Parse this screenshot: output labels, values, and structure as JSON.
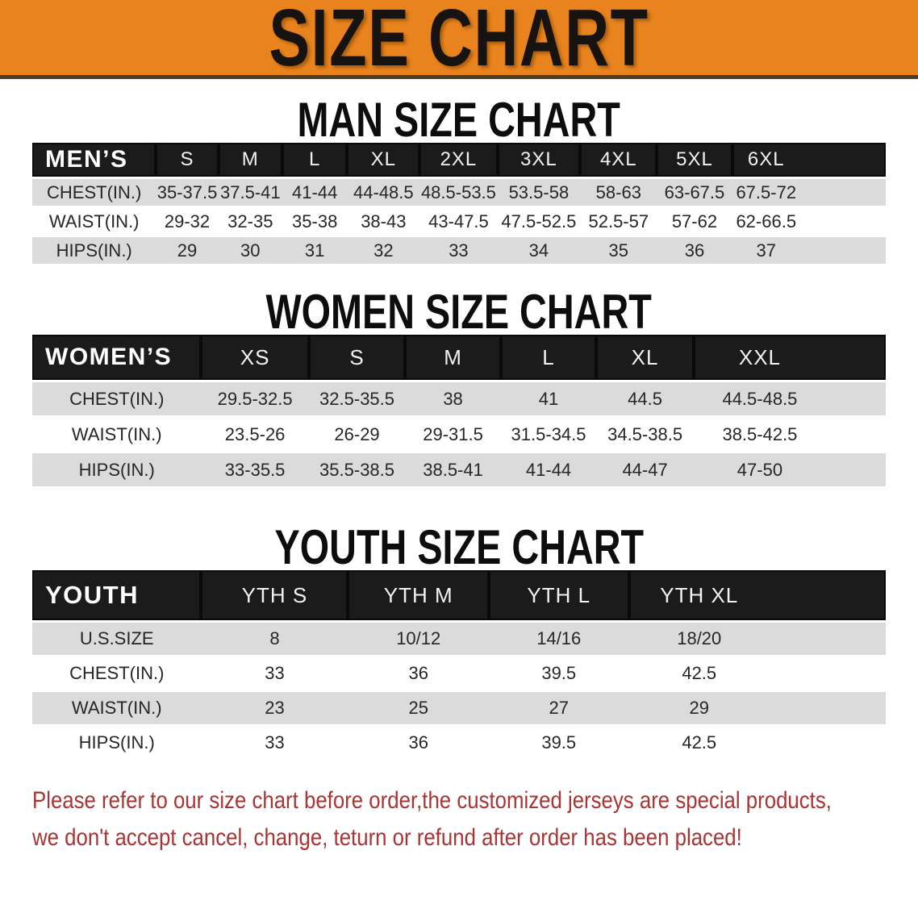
{
  "banner": {
    "title": "SIZE CHART"
  },
  "colors": {
    "banner_bg": "#E8831D",
    "header_bar_bg": "#1B1B1B",
    "row_stripe": "#DBDBDB",
    "notice_text": "#A93434"
  },
  "sections": [
    {
      "heading": "MAN SIZE CHART",
      "table": {
        "label": "MEN’S",
        "columns": [
          "S",
          "M",
          "L",
          "XL",
          "2XL",
          "3XL",
          "4XL",
          "5XL",
          "6XL"
        ],
        "rows": [
          {
            "label": "CHEST(IN.)",
            "values": [
              "35-37.5",
              "37.5-41",
              "41-44",
              "44-48.5",
              "48.5-53.5",
              "53.5-58",
              "58-63",
              "63-67.5",
              "67.5-72"
            ]
          },
          {
            "label": "WAIST(IN.)",
            "values": [
              "29-32",
              "32-35",
              "35-38",
              "38-43",
              "43-47.5",
              "47.5-52.5",
              "52.5-57",
              "57-62",
              "62-66.5"
            ]
          },
          {
            "label": "HIPS(IN.)",
            "values": [
              "29",
              "30",
              "31",
              "32",
              "33",
              "34",
              "35",
              "36",
              "37"
            ]
          }
        ]
      }
    },
    {
      "heading": "WOMEN SIZE CHART",
      "table": {
        "label": "WOMEN’S",
        "columns": [
          "XS",
          "S",
          "M",
          "L",
          "XL",
          "XXL"
        ],
        "rows": [
          {
            "label": "CHEST(IN.)",
            "values": [
              "29.5-32.5",
              "32.5-35.5",
              "38",
              "41",
              "44.5",
              "44.5-48.5"
            ]
          },
          {
            "label": "WAIST(IN.)",
            "values": [
              "23.5-26",
              "26-29",
              "29-31.5",
              "31.5-34.5",
              "34.5-38.5",
              "38.5-42.5"
            ]
          },
          {
            "label": "HIPS(IN.)",
            "values": [
              "33-35.5",
              "35.5-38.5",
              "38.5-41",
              "41-44",
              "44-47",
              "47-50"
            ]
          }
        ]
      }
    },
    {
      "heading": "YOUTH SIZE CHART",
      "table": {
        "label": "YOUTH",
        "columns": [
          "YTH S",
          "YTH M",
          "YTH L",
          "YTH XL"
        ],
        "rows": [
          {
            "label": "U.S.SIZE",
            "values": [
              "8",
              "10/12",
              "14/16",
              "18/20"
            ]
          },
          {
            "label": "CHEST(IN.)",
            "values": [
              "33",
              "36",
              "39.5",
              "42.5"
            ]
          },
          {
            "label": "WAIST(IN.)",
            "values": [
              "23",
              "25",
              "27",
              "29"
            ]
          },
          {
            "label": "HIPS(IN.)",
            "values": [
              "33",
              "36",
              "39.5",
              "42.5"
            ]
          }
        ]
      }
    }
  ],
  "footer": {
    "line1": "Please refer to our size chart before order,the customized jerseys are special products,",
    "line2": "we don't accept cancel, change, teturn or refund after order has been placed!"
  }
}
